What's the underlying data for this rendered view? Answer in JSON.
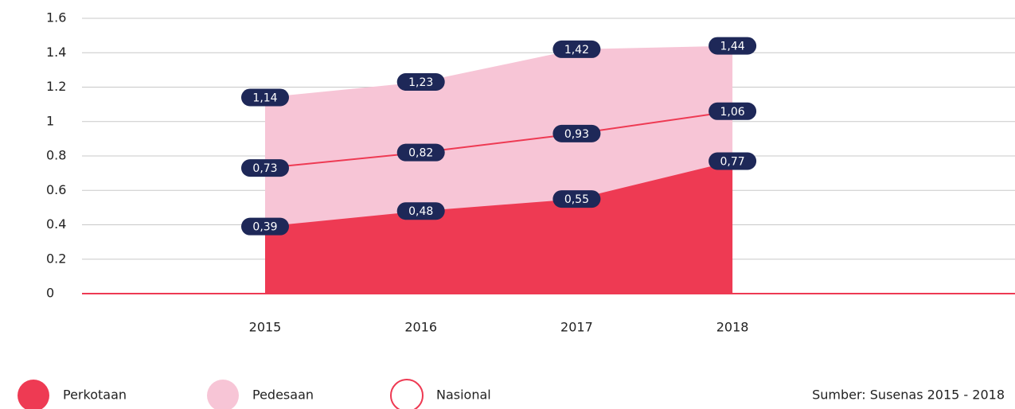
{
  "chart_data": {
    "type": "area",
    "categories": [
      "2015",
      "2016",
      "2017",
      "2018"
    ],
    "series": [
      {
        "name": "Pedesaan",
        "color": "#f7c5d6",
        "values": [
          1.14,
          1.23,
          1.42,
          1.44
        ],
        "value_labels": [
          "1,14",
          "1,23",
          "1,42",
          "1,44"
        ]
      },
      {
        "name": "Perkotaan",
        "color": "#ee3a53",
        "values": [
          0.39,
          0.48,
          0.55,
          0.77
        ],
        "value_labels": [
          "0,39",
          "0,48",
          "0,55",
          "0,77"
        ]
      },
      {
        "name": "Nasional",
        "color": "#ee3a53",
        "type": "line",
        "values": [
          0.73,
          0.82,
          0.93,
          1.06
        ],
        "value_labels": [
          "0,73",
          "0,82",
          "0,93",
          "1,06"
        ]
      }
    ],
    "ylim": [
      0,
      1.6
    ],
    "yticks": [
      0,
      0.2,
      0.4,
      0.6,
      0.8,
      1,
      1.2,
      1.4,
      1.6
    ],
    "grid": true,
    "label_color": "#1e2858",
    "source": "Sumber: Susenas 2015 - 2018"
  }
}
